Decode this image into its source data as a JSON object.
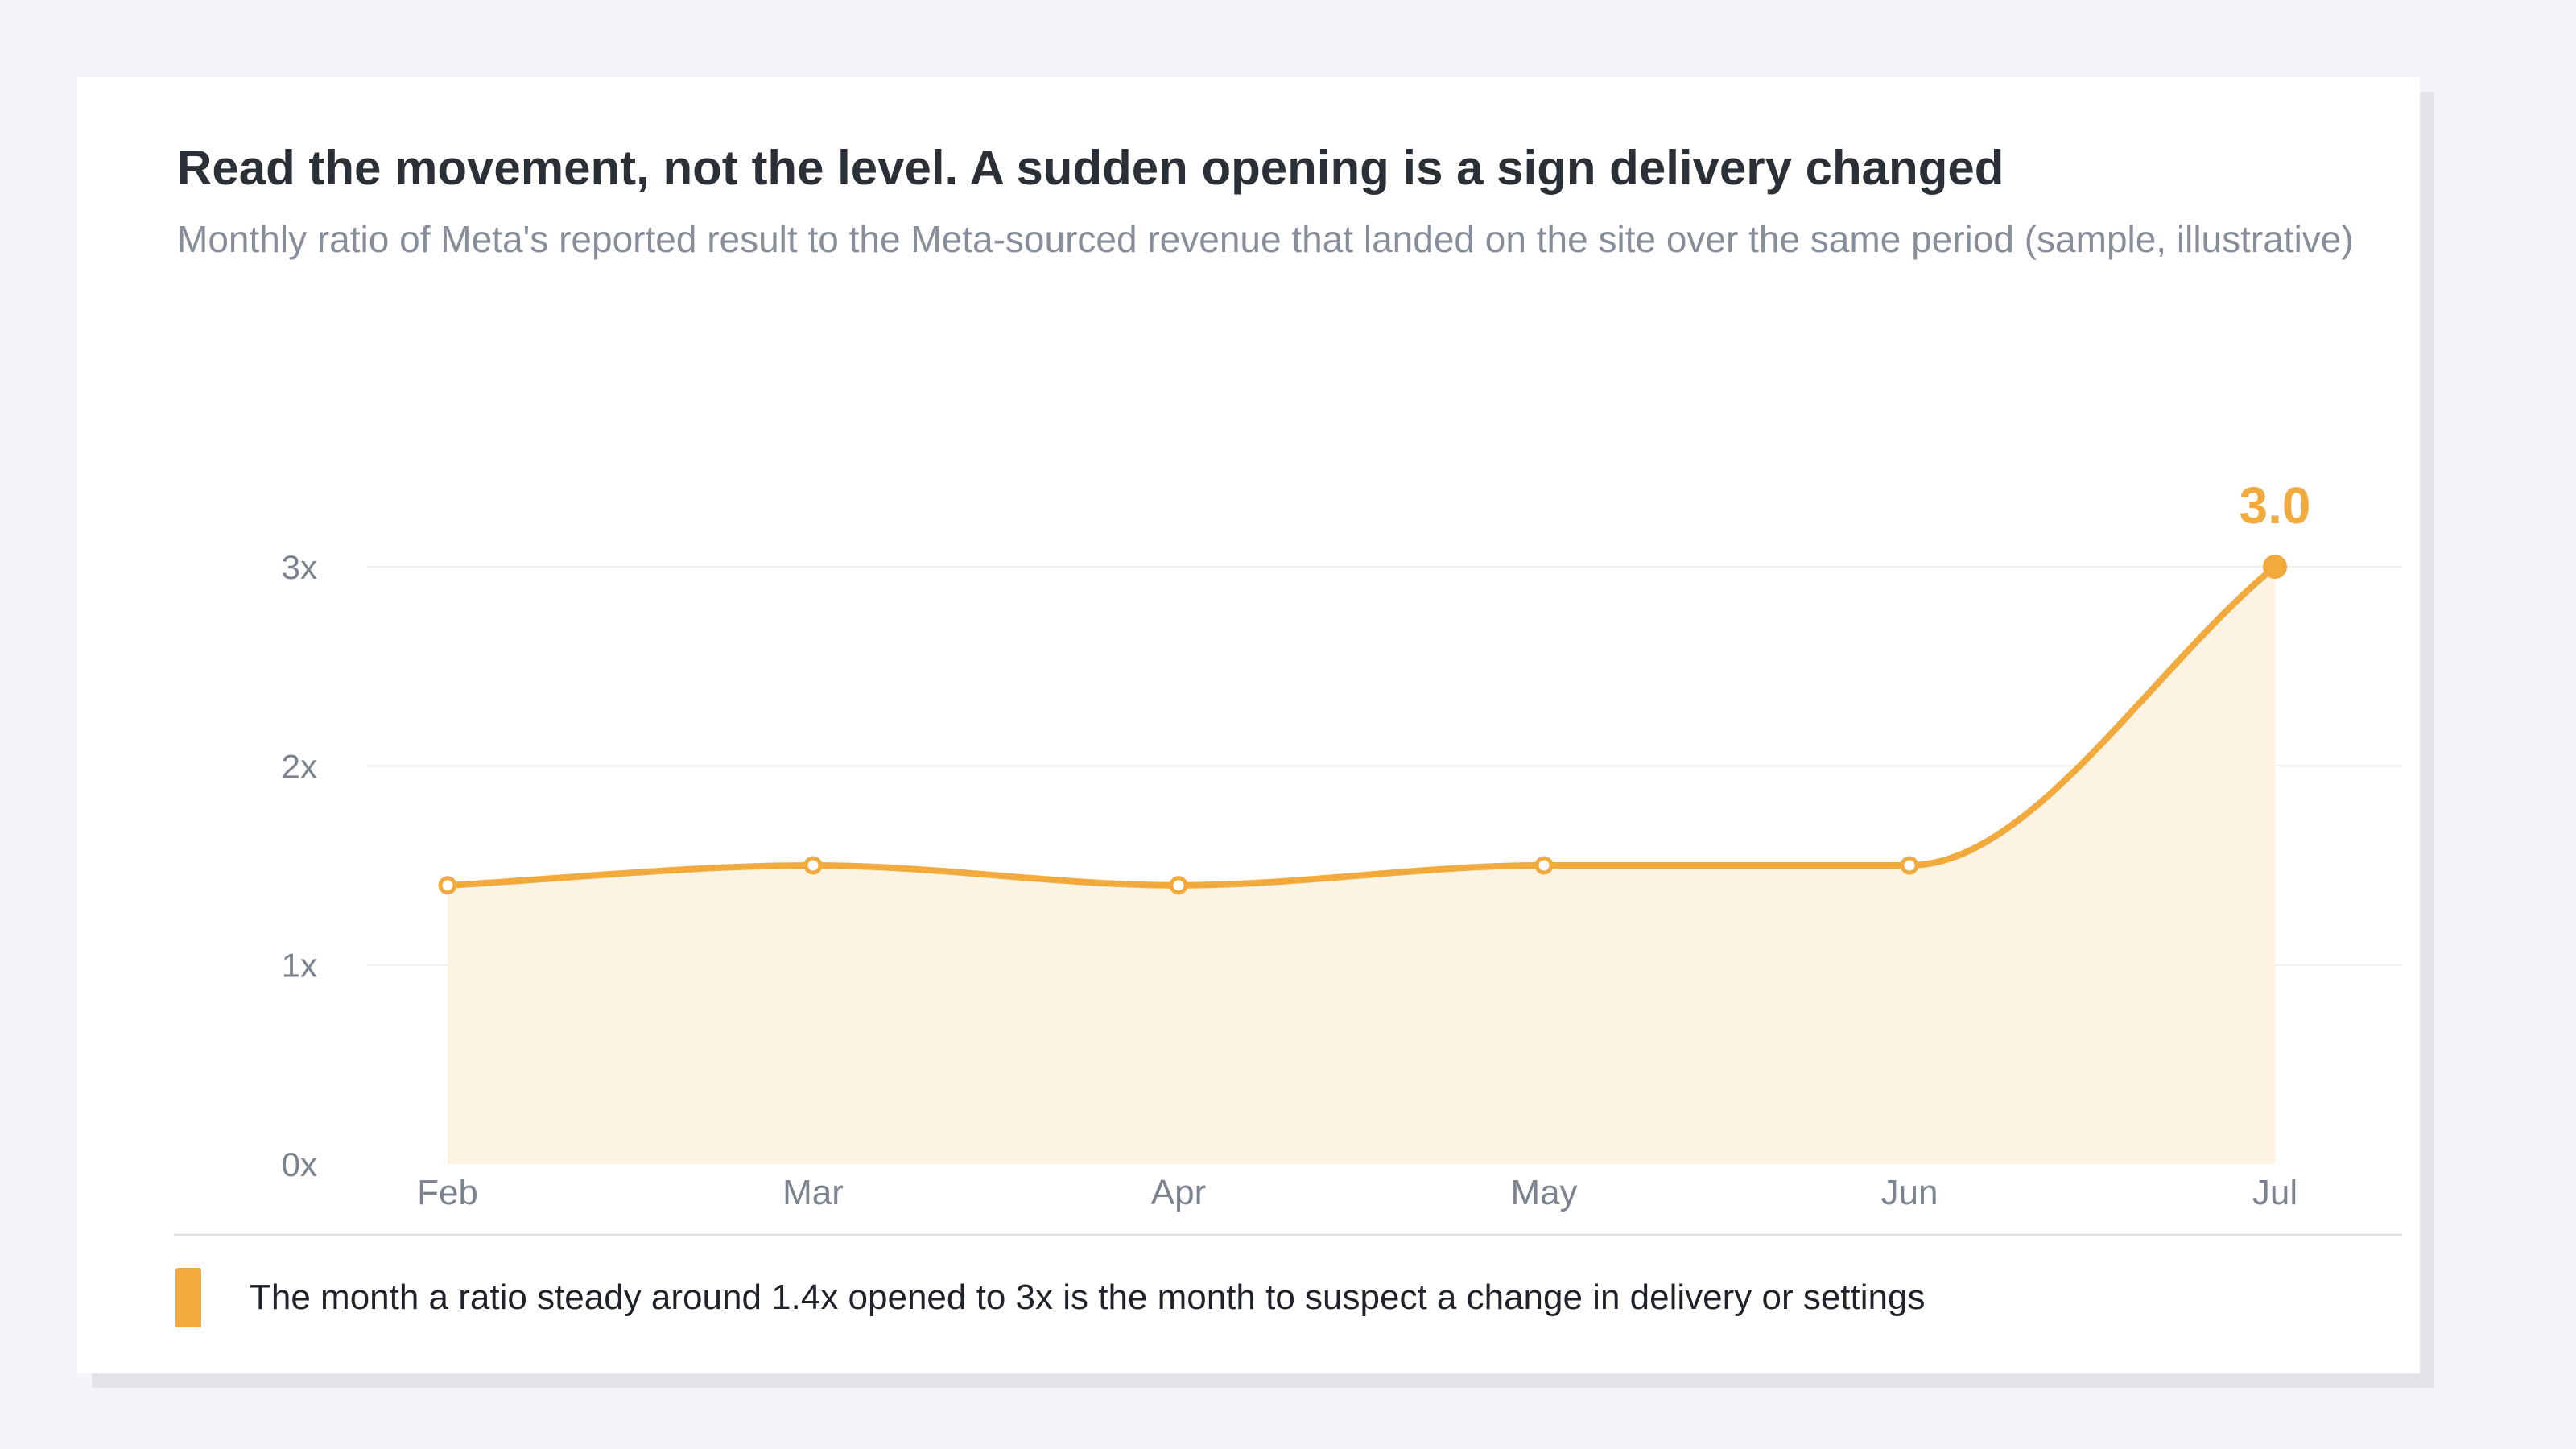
{
  "title": "Read the movement, not the level. A sudden opening is a sign delivery changed",
  "subtitle": "Monthly ratio of Meta's reported result to the Meta-sourced revenue that landed on the site over the same period (sample, illustrative)",
  "colors": {
    "accent": "#f2aa3c",
    "area_fill": "#fdf3e3",
    "axis_text": "#7c8390",
    "grid": "#eceef2",
    "baseline": "#e2e4e9"
  },
  "chart_data": {
    "type": "line",
    "categories": [
      "Feb",
      "Mar",
      "Apr",
      "May",
      "Jun",
      "Jul"
    ],
    "series": [
      {
        "values": [
          1.4,
          1.5,
          1.4,
          1.5,
          1.5,
          3.0
        ]
      }
    ],
    "ylim": [
      0,
      3
    ],
    "yticks": [
      0,
      1,
      2,
      3
    ],
    "ytick_labels": [
      "0x",
      "1x",
      "2x",
      "3x"
    ],
    "area_fill": true,
    "grid": true,
    "highlight": {
      "category": "Jul",
      "label": "3.0"
    }
  },
  "legend": {
    "text": "The month a ratio steady around 1.4x opened to 3x is the month to suspect a change in delivery or settings"
  }
}
